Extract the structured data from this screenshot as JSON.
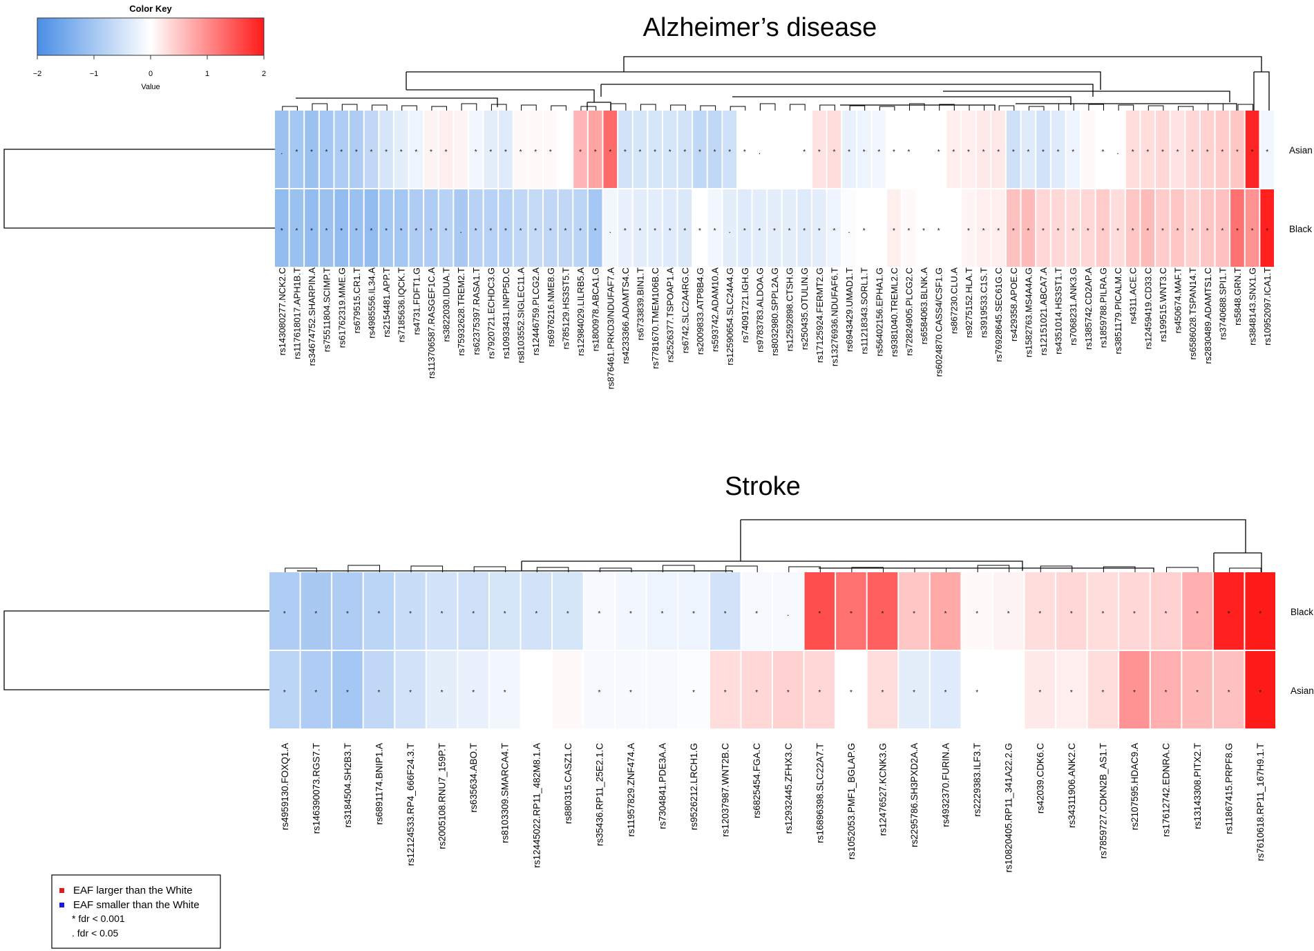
{
  "color_key": {
    "title": "Color Key",
    "value_label": "Value",
    "ticks": [
      "-2",
      "-1",
      "0",
      "1",
      "2"
    ],
    "range": [
      -2,
      2
    ],
    "low_color": "#4a8ee6",
    "mid_color": "#ffffff",
    "high_color": "#ff1a1a"
  },
  "legend": {
    "items": [
      {
        "marker": "red-square",
        "color": "#e11a1a",
        "text": "EAF larger than the White"
      },
      {
        "marker": "blue-square",
        "color": "#1a1ae1",
        "text": "EAF smaller than the White"
      },
      {
        "marker": "star",
        "text": "* fdr < 0.001"
      },
      {
        "marker": "dot",
        "text": ". fdr < 0.05"
      }
    ]
  },
  "chart_data": [
    {
      "type": "heatmap",
      "title": "Alzheimer’s disease",
      "rows": [
        "Asian",
        "Black"
      ],
      "columns": [
        "rs143080277.NCK2.C",
        "rs117618017.APH1B.T",
        "rs34674752.SHARPIN.A",
        "rs75511804.SCIMP.T",
        "rs61762319.MME.G",
        "rs679515.CR1.T",
        "rs4985556.IL34.A",
        "rs2154481.APP.T",
        "rs7185636.IQCK.T",
        "rs4731.FDFT1.G",
        "rs113706587.RASGEF1C.A",
        "rs3822030.IDUA.T",
        "rs75932628.TREM2.T",
        "rs62375397.RASA1.T",
        "rs7920721.ECHDC3.G",
        "rs10933431.INPP5D.C",
        "rs8103552.SIGLEC11.A",
        "rs12446759.PLCG2.A",
        "rs6976216.NME8.G",
        "rs785129.HS3ST5.T",
        "rs12984029.LILRB5.A",
        "rs1800978.ABCA1.G",
        "rs876461.PRKD3/NDUFAF7.A",
        "rs4233366.ADAMTS4.C",
        "rs6733839.BIN1.T",
        "rs7781670.TMEM106B.C",
        "rs2526377.TSPOAP1.A",
        "rs6742.SLC2A4RG.C",
        "rs2009833.ATP8B4.G",
        "rs593742.ADAM10.A",
        "rs12590654.SLC24A4.G",
        "rs74091721.IGH.G",
        "rs9783783.ALDOA.G",
        "rs8032980.SPPL2A.G",
        "rs12592898.CTSH.G",
        "rs250435.OTULIN.G",
        "rs17125924.FERMT2.G",
        "rs13276936.NDUFAF6.T",
        "rs6943429.UMAD1.T",
        "rs11218343.SORL1.T",
        "rs56402156.EPHA1.G",
        "rs9381040.TREML2.C",
        "rs72824905.PLCG2.C",
        "rs6584063.BLNK.A",
        "rs6024870.CASS4/CSF1.G",
        "rs867230.CLU.A",
        "rs9275152.HLA.T",
        "rs3919533.C1S.T",
        "rs76928645.SEC61G.C",
        "rs429358.APOE.C",
        "rs1582763.MS4A4A.G",
        "rs12151021.ABCA7.A",
        "rs4351014.HS3ST1.T",
        "rs7068231.ANK3.G",
        "rs1385742.CD2AP.A",
        "rs1859788.PILRA.G",
        "rs3851179.PICALM.C",
        "rs4311.ACE.C",
        "rs12459419.CD33.C",
        "rs199515.WNT3.C",
        "rs450674.MAF.T",
        "rs6586028.TSPAN14.T",
        "rs2830489.ADAMTS1.C",
        "rs3740688.SPI1.T",
        "rs5848.GRN.T",
        "rs3848143.SNX1.G",
        "rs10952097.ICA1.T"
      ],
      "values": [
        [
          -1.1,
          -1.0,
          -1.1,
          -1.0,
          -0.9,
          -0.9,
          -0.7,
          -0.45,
          -0.3,
          -0.2,
          0.1,
          0.15,
          0.1,
          -0.15,
          -0.3,
          -0.35,
          0.05,
          0.05,
          0.05,
          0.0,
          0.65,
          0.8,
          1.3,
          -0.5,
          -0.45,
          -0.45,
          -0.45,
          -0.5,
          -0.7,
          -0.7,
          -0.55,
          0.0,
          0.0,
          0.0,
          0.0,
          0.0,
          0.25,
          0.3,
          -0.25,
          -0.2,
          -0.15,
          0.0,
          0.0,
          0.0,
          0.0,
          0.15,
          0.15,
          0.2,
          0.2,
          -0.55,
          -0.35,
          -0.5,
          -0.35,
          -0.2,
          0.05,
          0.0,
          0.0,
          0.3,
          0.3,
          0.35,
          0.25,
          0.35,
          0.4,
          0.45,
          0.5,
          1.9,
          -0.15
        ],
        [
          -1.2,
          -1.1,
          -1.2,
          -1.1,
          -1.2,
          -1.1,
          -1.2,
          -1.0,
          -1.0,
          -0.9,
          -0.9,
          -0.8,
          -0.95,
          -0.8,
          -0.8,
          -0.8,
          -0.7,
          -0.65,
          -0.7,
          -0.7,
          -0.75,
          -1.0,
          -0.15,
          -0.25,
          -0.3,
          -0.3,
          -0.35,
          -0.4,
          0.0,
          -0.15,
          -0.3,
          -0.35,
          -0.3,
          -0.3,
          -0.3,
          -0.35,
          -0.3,
          -0.2,
          -0.05,
          0.0,
          0.0,
          0.15,
          0.05,
          0.0,
          0.0,
          0.0,
          0.1,
          0.15,
          0.15,
          0.55,
          0.6,
          0.35,
          0.35,
          0.3,
          0.35,
          0.45,
          0.3,
          0.5,
          0.6,
          0.45,
          0.5,
          0.4,
          0.5,
          0.55,
          1.25,
          0.95,
          1.95
        ]
      ],
      "significance": [
        [
          ".",
          "*",
          "*",
          "*",
          "*",
          "*",
          "*",
          "*",
          "*",
          "*",
          "*",
          "*",
          "",
          "*",
          "*",
          "*",
          "*",
          "*",
          "*",
          "",
          "*",
          "*",
          "*",
          "*",
          "*",
          "*",
          "*",
          "*",
          "*",
          "*",
          "*",
          "*",
          ".",
          "",
          "",
          "*",
          "*",
          "*",
          "*",
          "*",
          "*",
          "*",
          "*",
          "",
          "*",
          "*",
          "*",
          "*",
          "*",
          "*",
          "*",
          "*",
          "*",
          "*",
          "",
          "*",
          ".",
          "*",
          "*",
          "*",
          "*",
          "*",
          "*",
          "*",
          "*",
          "*",
          "*"
        ],
        [
          "*",
          "*",
          "*",
          "*",
          "*",
          "*",
          "*",
          "*",
          "*",
          "*",
          "*",
          "*",
          ".",
          "*",
          "*",
          "*",
          "*",
          "*",
          "*",
          "*",
          "*",
          "*",
          ".",
          "*",
          "*",
          "*",
          "*",
          "*",
          "*",
          "*",
          ".",
          "*",
          "*",
          "*",
          "*",
          "*",
          "*",
          "*",
          ".",
          "*",
          "",
          "*",
          "*",
          "*",
          "*",
          "",
          "*",
          "*",
          "*",
          "*",
          "*",
          "*",
          "*",
          "*",
          "*",
          "*",
          "*",
          "*",
          "*",
          "*",
          "*",
          "*",
          "*",
          "*",
          "*",
          "*",
          "*"
        ]
      ]
    },
    {
      "type": "heatmap",
      "title": "Stroke",
      "rows": [
        "Black",
        "Asian"
      ],
      "columns": [
        "rs4959130.FOXQ1.A",
        "rs146390073.RGS7.T",
        "rs3184504.SH2B3.T",
        "rs6891174.BNIP1.A",
        "rs12124533.RP4_666F24.3.T",
        "rs2005108.RNU7_159P.T",
        "rs635634.ABO.T",
        "rs8103309.SMARCA4.T",
        "rs12445022.RP11_482M8.1.A",
        "rs880315.CASZ1.C",
        "rs35436.RP11_25E2.1.C",
        "rs11957829.ZNF474.A",
        "rs7304841.PDE3A.A",
        "rs9526212.LRCH1.G",
        "rs12037987.WNT2B.C",
        "rs6825454.FGA.C",
        "rs12932445.ZFHX3.C",
        "rs16896398.SLC22A7.T",
        "rs1052053.PMF1_BGLAP.G",
        "rs12476527.KCNK3.G",
        "rs2295786.SH3PXD2A.A",
        "rs4932370.FURIN.A",
        "rs2229383.ILF3.T",
        "rs10820405.RP11_341A22.2.G",
        "rs42039.CDK6.C",
        "rs34311906.ANK2.C",
        "rs7859727.CDKN2B_AS1.T",
        "rs2107595.HDAC9.A",
        "rs17612742.EDNRA.C",
        "rs13143308.PITX2.T",
        "rs11867415.PRPF8.G",
        "rs7610618.RP11_167H9.1.T"
      ],
      "values": [
        [
          -0.9,
          -0.95,
          -0.9,
          -0.75,
          -0.6,
          -0.5,
          -0.55,
          -0.45,
          -0.5,
          -0.45,
          -0.1,
          -0.15,
          -0.2,
          -0.2,
          -0.5,
          -0.1,
          -0.1,
          1.55,
          1.25,
          1.4,
          0.5,
          0.75,
          0.05,
          0.1,
          0.3,
          0.35,
          0.3,
          0.35,
          0.4,
          0.7,
          1.95,
          2.0
        ],
        [
          -0.75,
          -0.9,
          -1.0,
          -0.7,
          -0.5,
          -0.3,
          -0.25,
          -0.15,
          0.0,
          0.05,
          -0.1,
          -0.1,
          -0.1,
          -0.05,
          0.3,
          0.35,
          0.4,
          0.35,
          0.0,
          0.3,
          -0.3,
          -0.35,
          0.0,
          0.0,
          0.2,
          0.15,
          0.3,
          0.95,
          0.7,
          0.6,
          0.55,
          2.0
        ]
      ],
      "significance": [
        [
          "*",
          "*",
          "*",
          "*",
          "*",
          "*",
          "*",
          "*",
          "*",
          "*",
          "*",
          "*",
          "*",
          "*",
          "*",
          "*",
          ".",
          "*",
          "*",
          "*",
          "*",
          "*",
          "*",
          "*",
          "*",
          "*",
          "*",
          "*",
          "*",
          "*",
          "*",
          "*"
        ],
        [
          "*",
          "*",
          "*",
          "*",
          "*",
          "*",
          "*",
          "*",
          "",
          "",
          "*",
          "*",
          "",
          "*",
          "*",
          "*",
          "*",
          "*",
          "*",
          "*",
          "*",
          "*",
          "*",
          "",
          "*",
          "*",
          "*",
          "*",
          "*",
          "*",
          "*",
          "*"
        ]
      ]
    }
  ]
}
